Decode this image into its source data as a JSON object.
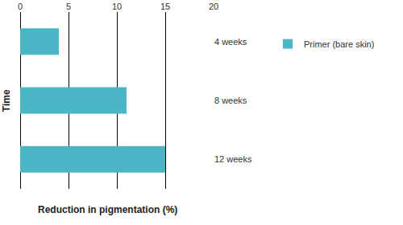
{
  "chart_data": {
    "type": "bar",
    "orientation": "horizontal",
    "x_label": "Reduction in pigmentation (%)",
    "y_label": "Time",
    "categories": [
      "4 weeks",
      "8 weeks",
      "12 weeks"
    ],
    "series": [
      {
        "name": "Primer (bare skin)",
        "color": "#4ab6c6",
        "values": [
          4,
          11,
          15
        ]
      }
    ],
    "xlim": [
      0,
      20
    ],
    "xticks": [
      0,
      5,
      10,
      15,
      20
    ],
    "grid": true,
    "legend": "right"
  }
}
